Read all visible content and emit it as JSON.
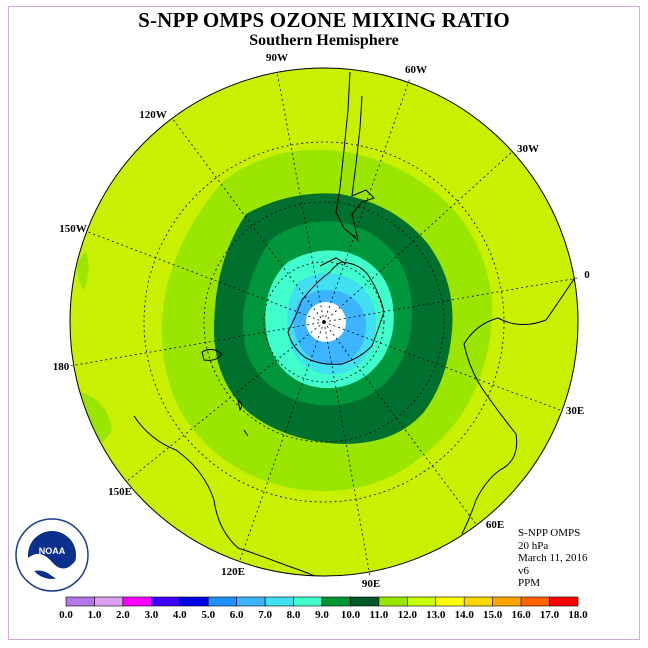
{
  "title": "S-NPP OMPS OZONE MIXING RATIO",
  "subtitle": "Southern Hemisphere",
  "longitude_labels": [
    "90W",
    "60W",
    "30W",
    "0",
    "30E",
    "60E",
    "90E",
    "120E",
    "150E",
    "180",
    "150W",
    "120W"
  ],
  "info": {
    "instrument": "S-NPP OMPS",
    "level": "20 hPa",
    "date": "March 11, 2016",
    "version": "v6",
    "units": "PPM"
  },
  "logo": {
    "text": "NOAA",
    "icon": "noaa-logo-icon"
  },
  "colorbar": {
    "ticks": [
      "0.0",
      "1.0",
      "2.0",
      "3.0",
      "4.0",
      "5.0",
      "6.0",
      "7.0",
      "8.0",
      "9.0",
      "10.0",
      "11.0",
      "12.0",
      "13.0",
      "14.0",
      "15.0",
      "16.0",
      "17.0",
      "18.0"
    ],
    "colors": [
      "#b276e6",
      "#dca0f0",
      "#ff00ff",
      "#4000ff",
      "#0000e6",
      "#1e90ff",
      "#3cb4ff",
      "#40e0f0",
      "#40ffcc",
      "#009632",
      "#005a28",
      "#9be600",
      "#c8ff00",
      "#ffff00",
      "#ffd700",
      "#ffa500",
      "#ff6400",
      "#ff0000",
      "#8b4513"
    ]
  }
}
